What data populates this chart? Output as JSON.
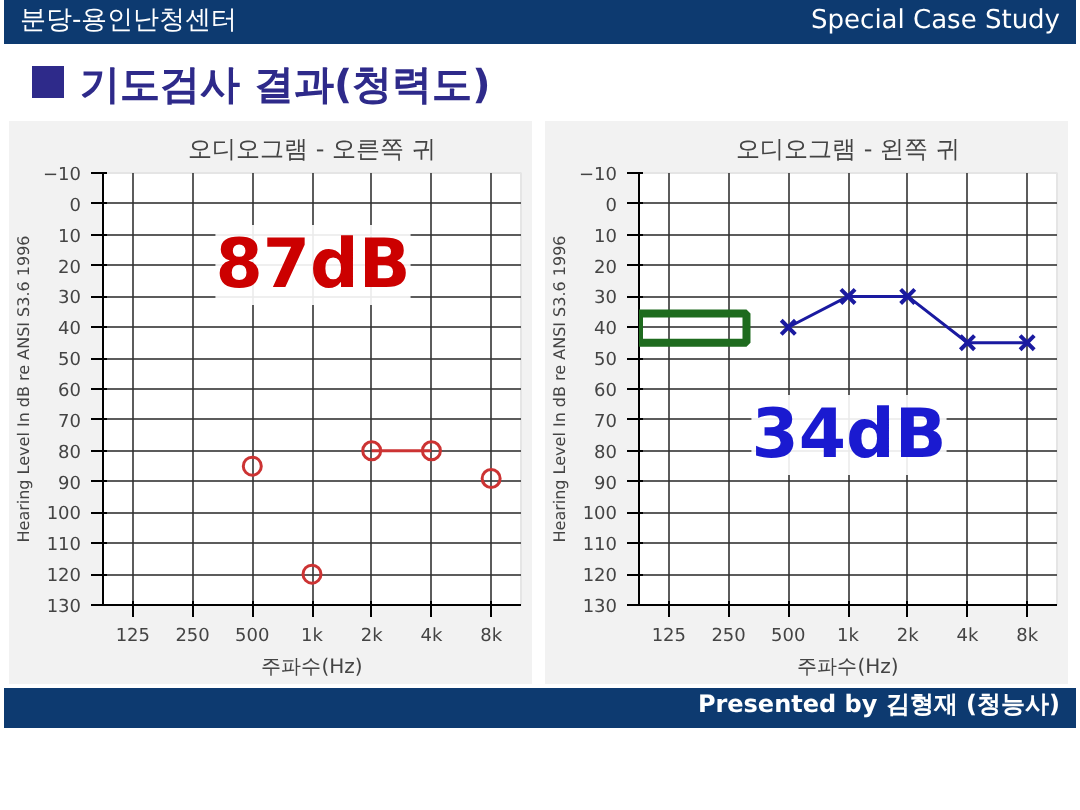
{
  "chart_data": [
    {
      "type": "other",
      "title": "기도검사 결과(청력도)",
      "annotations": [
        "분당-용인난청센터",
        "Special Case Study",
        "Presented by 김형재 (청능사)"
      ]
    },
    {
      "type": "line",
      "title": "오디오그램 - 오른쪽 귀",
      "xlabel": "주파수(Hz)",
      "ylabel": "Hearing Level In dB re ANSI S3.6 1996",
      "categories": [
        "125",
        "250",
        "500",
        "1k",
        "2k",
        "4k",
        "8k"
      ],
      "ylim": [
        130,
        -10
      ],
      "yticks": [
        -10,
        0,
        10,
        20,
        30,
        40,
        50,
        60,
        70,
        80,
        90,
        100,
        110,
        120,
        130
      ],
      "grid": true,
      "annotations": [
        "87dB"
      ],
      "series": [
        {
          "type": "scatter",
          "color": "#cc3333",
          "marker": "circle",
          "values": [
            null,
            null,
            85,
            120,
            null,
            null,
            89
          ]
        },
        {
          "type": "line",
          "color": "#cc3333",
          "marker": "circle",
          "line_style": "solid",
          "values": [
            null,
            null,
            null,
            null,
            80,
            80,
            null
          ]
        }
      ]
    },
    {
      "type": "line",
      "title": "오디오그램 - 왼쪽 귀",
      "xlabel": "주파수(Hz)",
      "ylabel": "Hearing Level In dB re ANSI S3.6 1996",
      "categories": [
        "125",
        "250",
        "500",
        "1k",
        "2k",
        "4k",
        "8k"
      ],
      "ylim": [
        130,
        -10
      ],
      "yticks": [
        -10,
        0,
        10,
        20,
        30,
        40,
        50,
        60,
        70,
        80,
        90,
        100,
        110,
        120,
        130
      ],
      "grid": true,
      "annotations": [
        "34dB"
      ],
      "series": [
        {
          "type": "line",
          "color": "#1a1aa0",
          "marker": "cross",
          "line_style": "solid",
          "values": [
            null,
            null,
            40,
            30,
            30,
            45,
            45
          ]
        }
      ]
    }
  ]
}
